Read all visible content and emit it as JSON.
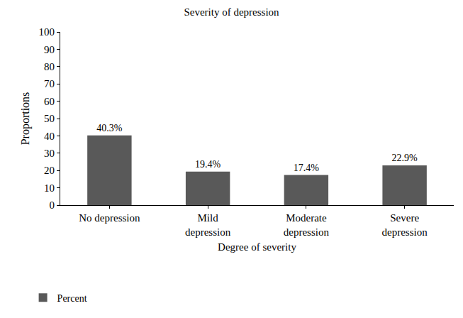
{
  "chart_data": {
    "type": "bar",
    "title": "Severity of depression",
    "x_label": "Degree of severity",
    "y_label": "Proportions",
    "categories": [
      "No depression",
      "Mild\ndepression",
      "Moderate\ndepression",
      "Severe\ndepression"
    ],
    "series": [
      {
        "name": "Percent",
        "color": "#595959",
        "values": [
          40.3,
          19.4,
          17.4,
          22.9
        ],
        "value_labels": [
          "40.3%",
          "19.4%",
          "17.4%",
          "22.9%"
        ]
      }
    ],
    "ylim": [
      0,
      100
    ],
    "yticks": [
      0,
      10,
      20,
      30,
      40,
      50,
      60,
      70,
      80,
      90,
      100
    ],
    "grid": false,
    "data_labels": true,
    "legend": "bottom-left"
  }
}
